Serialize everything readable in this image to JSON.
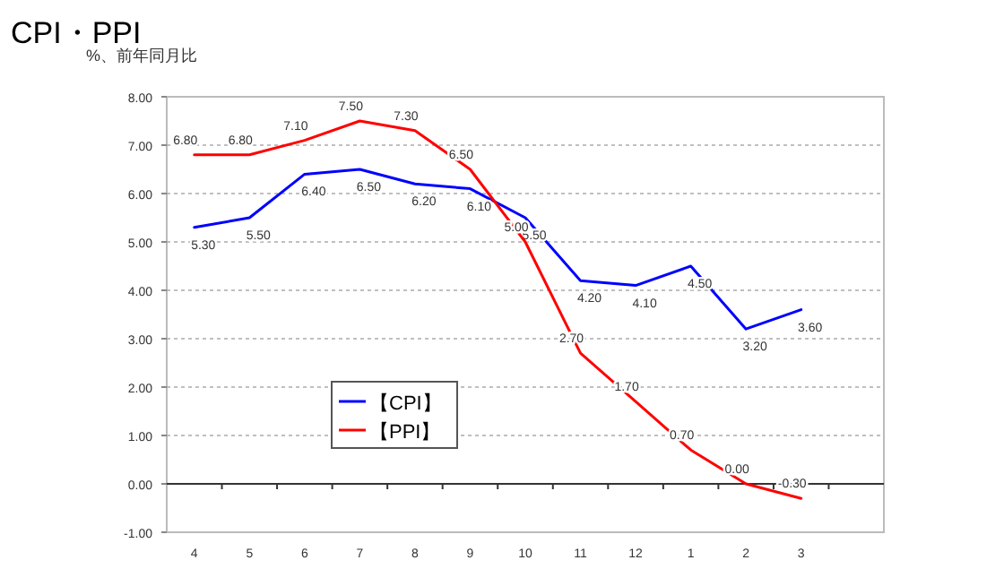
{
  "chart_data": {
    "type": "line",
    "title": "CPI・PPI",
    "ylabel": "%、前年同月比",
    "categories": [
      "4",
      "5",
      "6",
      "7",
      "8",
      "9",
      "10",
      "11",
      "12",
      "1",
      "2",
      "3"
    ],
    "series": [
      {
        "name": "【CPI】",
        "color": "#0000ff",
        "values": [
          5.3,
          5.5,
          6.4,
          6.5,
          6.2,
          6.1,
          5.5,
          4.2,
          4.1,
          4.5,
          3.2,
          3.6
        ],
        "value_labels": [
          "5.30",
          "5.50",
          "6.40",
          "6.50",
          "6.20",
          "6.10",
          "5.50",
          "4.20",
          "4.10",
          "4.50",
          "3.20",
          "3.60"
        ]
      },
      {
        "name": "【PPI】",
        "color": "#ff0000",
        "values": [
          6.8,
          6.8,
          7.1,
          7.5,
          7.3,
          6.5,
          5.0,
          2.7,
          1.7,
          0.7,
          0.0,
          -0.3
        ],
        "value_labels": [
          "6.80",
          "6.80",
          "7.10",
          "7.50",
          "7.30",
          "6.50",
          "5.00",
          "2.70",
          "1.70",
          "0.70",
          "0.00",
          "-0.30"
        ]
      }
    ],
    "ylim": [
      -1,
      8
    ],
    "yticks": [
      {
        "value": -1,
        "label": "-1.00"
      },
      {
        "value": 0,
        "label": "0.00"
      },
      {
        "value": 1,
        "label": "1.00"
      },
      {
        "value": 2,
        "label": "2.00"
      },
      {
        "value": 3,
        "label": "3.00"
      },
      {
        "value": 4,
        "label": "4.00"
      },
      {
        "value": 5,
        "label": "5.00"
      },
      {
        "value": 6,
        "label": "6.00"
      },
      {
        "value": 7,
        "label": "7.00"
      },
      {
        "value": 8,
        "label": "8.00"
      }
    ],
    "grid": "y",
    "legend": "bottom left",
    "marker": "none",
    "line_style": "solid"
  }
}
